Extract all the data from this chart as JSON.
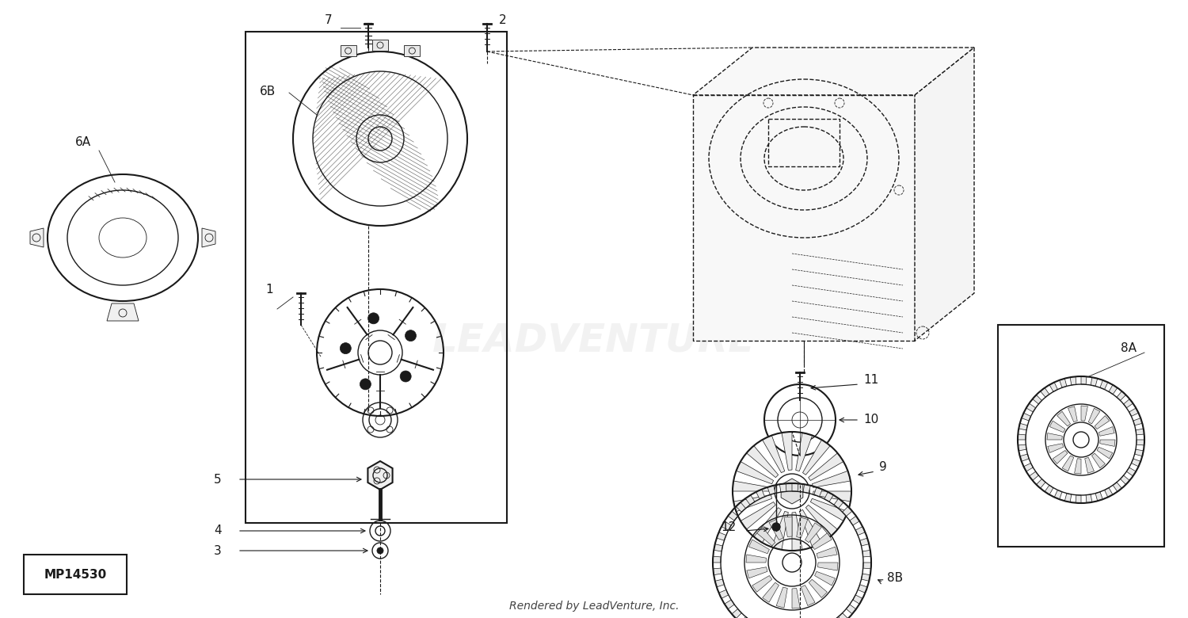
{
  "bg_color": "#ffffff",
  "line_color": "#1a1a1a",
  "watermark_color": "#e0e0e0",
  "footer_text": "Rendered by LeadVenture, Inc.",
  "part_number_box": "MP14530",
  "watermark": "LEADVENTURE"
}
